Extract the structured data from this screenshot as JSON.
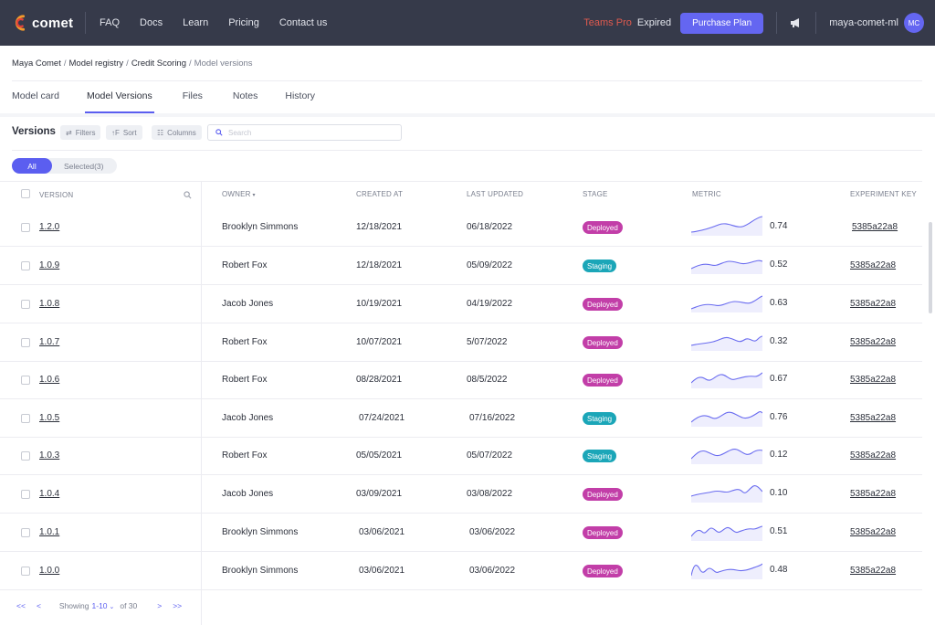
{
  "brand": {
    "name": "comet"
  },
  "nav": {
    "links": [
      "FAQ",
      "Docs",
      "Learn",
      "Pricing",
      "Contact us"
    ],
    "teams_pro": "Teams Pro",
    "expired": "Expired",
    "purchase_label": "Purchase Plan",
    "username": "maya-comet-ml",
    "avatar_initials": "MC"
  },
  "breadcrumb": [
    "Maya Comet",
    "Model registry",
    "Credit Scoring",
    "Model versions"
  ],
  "tabs": [
    "Model card",
    "Model Versions",
    "Files",
    "Notes",
    "History"
  ],
  "toolbar": {
    "title": "Versions",
    "filters": "Filters",
    "sort": "Sort",
    "columns": "Columns",
    "search_placeholder": "Search"
  },
  "segment": {
    "all": "All",
    "selected": "Selected(3)"
  },
  "table": {
    "headers": {
      "version": "VERSION",
      "owner": "OWNER",
      "created": "CREATED AT",
      "updated": "LAST UPDATED",
      "stage": "STAGE",
      "metric": "METRIC",
      "expkey": "EXPERIMENT KEY"
    },
    "stage_colors": {
      "Deployed": "#c23ea8",
      "Staging": "#1ba6b8"
    },
    "rows": [
      {
        "version": "1.2.0",
        "owner": "Brooklyn Simmons",
        "created": "12/18/2021",
        "updated": "06/18/2022",
        "stage": "Deployed",
        "metric": "0.74",
        "expkey": "5385a22a8"
      },
      {
        "version": "1.0.9",
        "owner": "Robert Fox",
        "created": "12/18/2021",
        "updated": "05/09/2022",
        "stage": "Staging",
        "metric": "0.52",
        "expkey": "5385a22a8"
      },
      {
        "version": "1.0.8",
        "owner": "Jacob Jones",
        "created": "10/19/2021",
        "updated": "04/19/2022",
        "stage": "Deployed",
        "metric": "0.63",
        "expkey": "5385a22a8"
      },
      {
        "version": "1.0.7",
        "owner": "Robert Fox",
        "created": "10/07/2021",
        "updated": "5/07/2022",
        "stage": "Deployed",
        "metric": "0.32",
        "expkey": "5385a22a8"
      },
      {
        "version": "1.0.6",
        "owner": "Robert Fox",
        "created": "08/28/2021",
        "updated": "08/5/2022",
        "stage": "Deployed",
        "metric": "0.67",
        "expkey": "5385a22a8"
      },
      {
        "version": "1.0.5",
        "owner": "Jacob Jones",
        "created": "07/24/2021",
        "updated": "07/16/2022",
        "stage": "Staging",
        "metric": "0.76",
        "expkey": "5385a22a8"
      },
      {
        "version": "1.0.3",
        "owner": "Robert Fox",
        "created": "05/05/2021",
        "updated": "05/07/2022",
        "stage": "Staging",
        "metric": "0.12",
        "expkey": "5385a22a8"
      },
      {
        "version": "1.0.4",
        "owner": "Jacob Jones",
        "created": "03/09/2021",
        "updated": "03/08/2022",
        "stage": "Deployed",
        "metric": "0.10",
        "expkey": "5385a22a8"
      },
      {
        "version": "1.0.1",
        "owner": "Brooklyn Simmons",
        "created": "03/06/2021",
        "updated": "03/06/2022",
        "stage": "Deployed",
        "metric": "0.51",
        "expkey": "5385a22a8"
      },
      {
        "version": "1.0.0",
        "owner": "Brooklyn Simmons",
        "created": "03/06/2021",
        "updated": "03/06/2022",
        "stage": "Deployed",
        "metric": "0.48",
        "expkey": "5385a22a8"
      }
    ]
  },
  "pagination": {
    "first": "<<",
    "prev": "<",
    "showing": "Showing",
    "range": "1-10",
    "of": "of 30",
    "next": ">",
    "last": ">>"
  },
  "colors": {
    "nav_bg": "#363a4a",
    "accent": "#5b5ef0",
    "alert": "#e05a4f"
  }
}
